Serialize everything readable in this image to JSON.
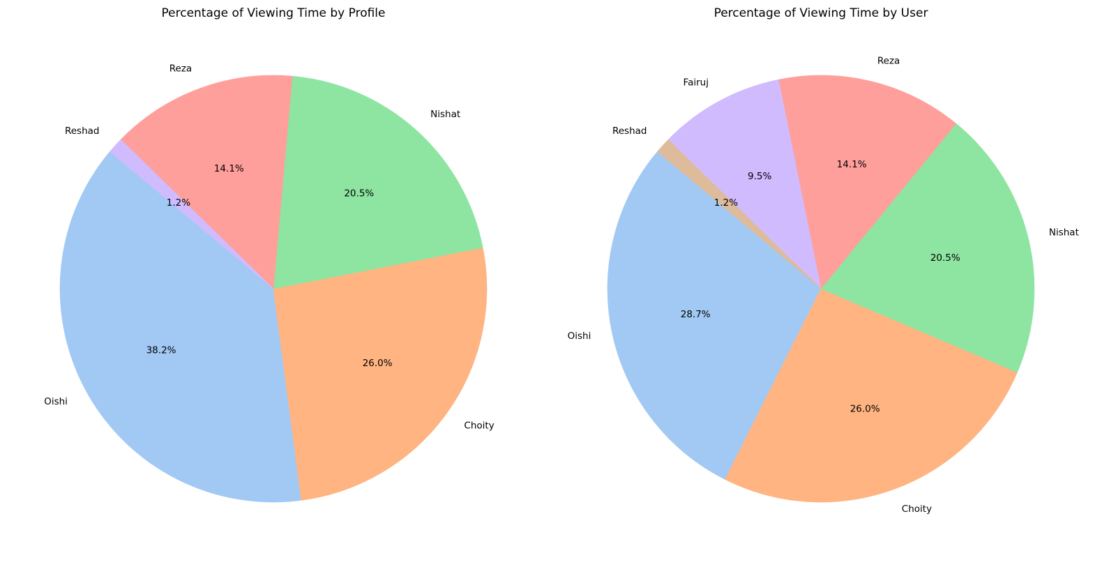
{
  "chart_data": [
    {
      "type": "pie",
      "title": "Percentage of Viewing Time by Profile",
      "start_angle_deg": 140,
      "direction": "counterclockwise",
      "slices": [
        {
          "label": "Oishi",
          "value": 38.2,
          "pct_label": "38.2%",
          "color": "#a1c9f4"
        },
        {
          "label": "Choity",
          "value": 26.0,
          "pct_label": "26.0%",
          "color": "#ffb482"
        },
        {
          "label": "Nishat",
          "value": 20.5,
          "pct_label": "20.5%",
          "color": "#8de5a1"
        },
        {
          "label": "Reza",
          "value": 14.1,
          "pct_label": "14.1%",
          "color": "#ff9f9b"
        },
        {
          "label": "Reshad",
          "value": 1.2,
          "pct_label": "1.2%",
          "color": "#d0bbff"
        }
      ]
    },
    {
      "type": "pie",
      "title": "Percentage of Viewing Time by User",
      "start_angle_deg": 140,
      "direction": "counterclockwise",
      "slices": [
        {
          "label": "Oishi",
          "value": 28.7,
          "pct_label": "28.7%",
          "color": "#a1c9f4"
        },
        {
          "label": "Choity",
          "value": 26.0,
          "pct_label": "26.0%",
          "color": "#ffb482"
        },
        {
          "label": "Nishat",
          "value": 20.5,
          "pct_label": "20.5%",
          "color": "#8de5a1"
        },
        {
          "label": "Reza",
          "value": 14.1,
          "pct_label": "14.1%",
          "color": "#ff9f9b"
        },
        {
          "label": "Fairuj",
          "value": 9.5,
          "pct_label": "9.5%",
          "color": "#d0bbff"
        },
        {
          "label": "Reshad",
          "value": 1.2,
          "pct_label": "1.2%",
          "color": "#debb9b"
        }
      ]
    }
  ]
}
